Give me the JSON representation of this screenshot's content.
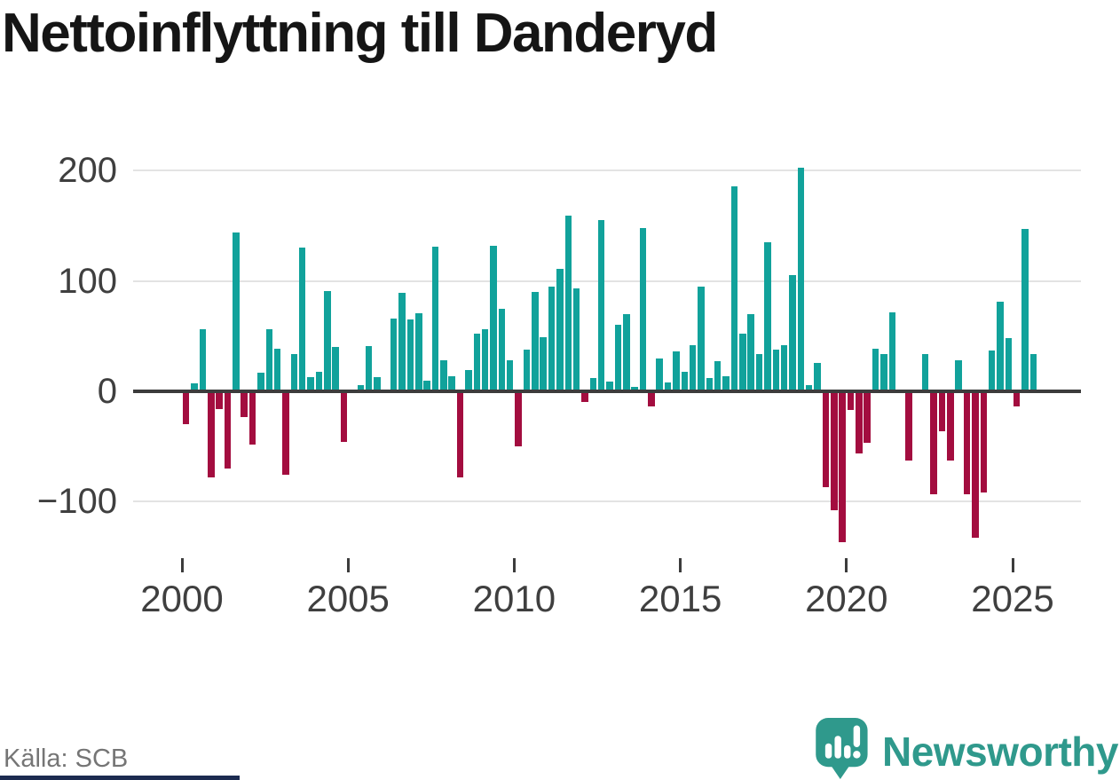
{
  "title": "Nettoinflyttning till Danderyd",
  "source_text": "Källa: SCB",
  "branding": {
    "name": "Newsworthy",
    "icon": "speech-bubble-bar-chart-icon"
  },
  "colors": {
    "positive_bar": "#11a29b",
    "negative_bar": "#a30d3f",
    "axis": "#3c3c3c",
    "grid": "#e3e3e3",
    "tick_label": "#3f3f3f",
    "title_text": "#151515",
    "source_text": "#757575",
    "brand_teal": "#2f998c",
    "accent_navy": "#1c2b50",
    "background": "#ffffff"
  },
  "chart_data": {
    "type": "bar",
    "title": "Nettoinflyttning till Danderyd",
    "x_axis": {
      "start": "2000-Q1",
      "end": "2025-Q3",
      "frequency": "quarterly"
    },
    "x_ticks": [
      {
        "label": "2000",
        "year": 2000
      },
      {
        "label": "2005",
        "year": 2005
      },
      {
        "label": "2010",
        "year": 2010
      },
      {
        "label": "2015",
        "year": 2015
      },
      {
        "label": "2020",
        "year": 2020
      },
      {
        "label": "2025",
        "year": 2025
      }
    ],
    "y_ticks": [
      {
        "label": "200",
        "value": 200
      },
      {
        "label": "100",
        "value": 100
      },
      {
        "label": "0",
        "value": 0
      },
      {
        "label": "−100",
        "value": -100
      }
    ],
    "ylim": [
      -150,
      210
    ],
    "grid": true,
    "legend": false,
    "values": [
      -30,
      7,
      56,
      -78,
      -16,
      -70,
      144,
      -23,
      -48,
      17,
      56,
      39,
      -76,
      34,
      130,
      13,
      18,
      91,
      40,
      -46,
      0,
      6,
      41,
      13,
      0,
      66,
      89,
      65,
      71,
      10,
      131,
      28,
      14,
      -78,
      19,
      52,
      56,
      132,
      75,
      28,
      -50,
      38,
      90,
      49,
      95,
      111,
      159,
      93,
      -10,
      12,
      155,
      9,
      60,
      70,
      4,
      148,
      -14,
      30,
      8,
      36,
      18,
      42,
      95,
      12,
      27,
      14,
      186,
      52,
      70,
      34,
      135,
      38,
      42,
      105,
      203,
      6,
      26,
      -87,
      -108,
      -137,
      -17,
      -56,
      -47,
      39,
      34,
      72,
      0,
      -63,
      0,
      34,
      -93,
      -36,
      -63,
      28,
      -93,
      -133,
      -92,
      37,
      81,
      48,
      -14,
      147,
      34
    ]
  }
}
